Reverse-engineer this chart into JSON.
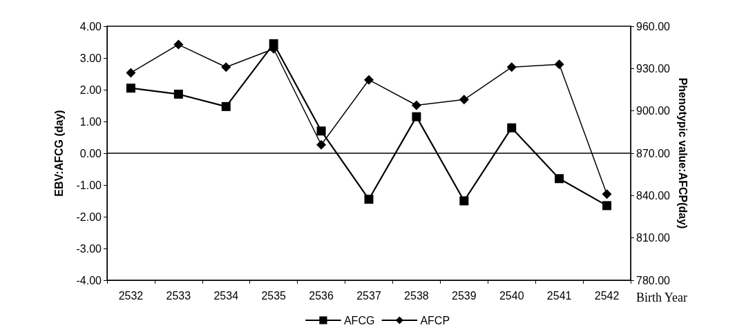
{
  "chart_data": {
    "type": "line",
    "categories": [
      "2532",
      "2533",
      "2534",
      "2535",
      "2536",
      "2537",
      "2538",
      "2539",
      "2540",
      "2541",
      "2542"
    ],
    "xlabel": "Birth Year",
    "ylabel": "EBV:AFCG (day)",
    "y2label": "Phenotypic value:AFCP(day)",
    "series": [
      {
        "name": "AFCG",
        "color": "#000000",
        "marker": "square",
        "values": [
          2.05,
          1.86,
          1.47,
          3.45,
          0.7,
          -1.45,
          1.15,
          -1.5,
          0.8,
          -0.8,
          -1.65
        ]
      },
      {
        "name": "AFCP",
        "color": "#000000",
        "marker": "diamond",
        "axis": "y2",
        "values": [
          927,
          947,
          931,
          944,
          876,
          922,
          904,
          908,
          931,
          933,
          841
        ]
      }
    ],
    "ylim": [
      -4,
      4
    ],
    "yticks": [
      {
        "value": -4,
        "label": "-4.00"
      },
      {
        "value": -3,
        "label": "-3.00"
      },
      {
        "value": -2,
        "label": "-2.00"
      },
      {
        "value": -1,
        "label": "-1.00"
      },
      {
        "value": 0,
        "label": "0.00"
      },
      {
        "value": 1,
        "label": "1.00"
      },
      {
        "value": 2,
        "label": "2.00"
      },
      {
        "value": 3,
        "label": "3.00"
      },
      {
        "value": 4,
        "label": "4.00"
      }
    ],
    "y2lim": [
      780,
      960
    ],
    "y2ticks": [
      {
        "value": 780,
        "label": "780.00"
      },
      {
        "value": 810,
        "label": "810.00"
      },
      {
        "value": 840,
        "label": "840.00"
      },
      {
        "value": 870,
        "label": "870.00"
      },
      {
        "value": 900,
        "label": "900.00"
      },
      {
        "value": 930,
        "label": "930.00"
      },
      {
        "value": 960,
        "label": "960.00"
      }
    ],
    "ref_lines": [
      {
        "axis": "y",
        "value": 0,
        "color": "#000000"
      }
    ],
    "grid": false,
    "legend": "bottom"
  }
}
